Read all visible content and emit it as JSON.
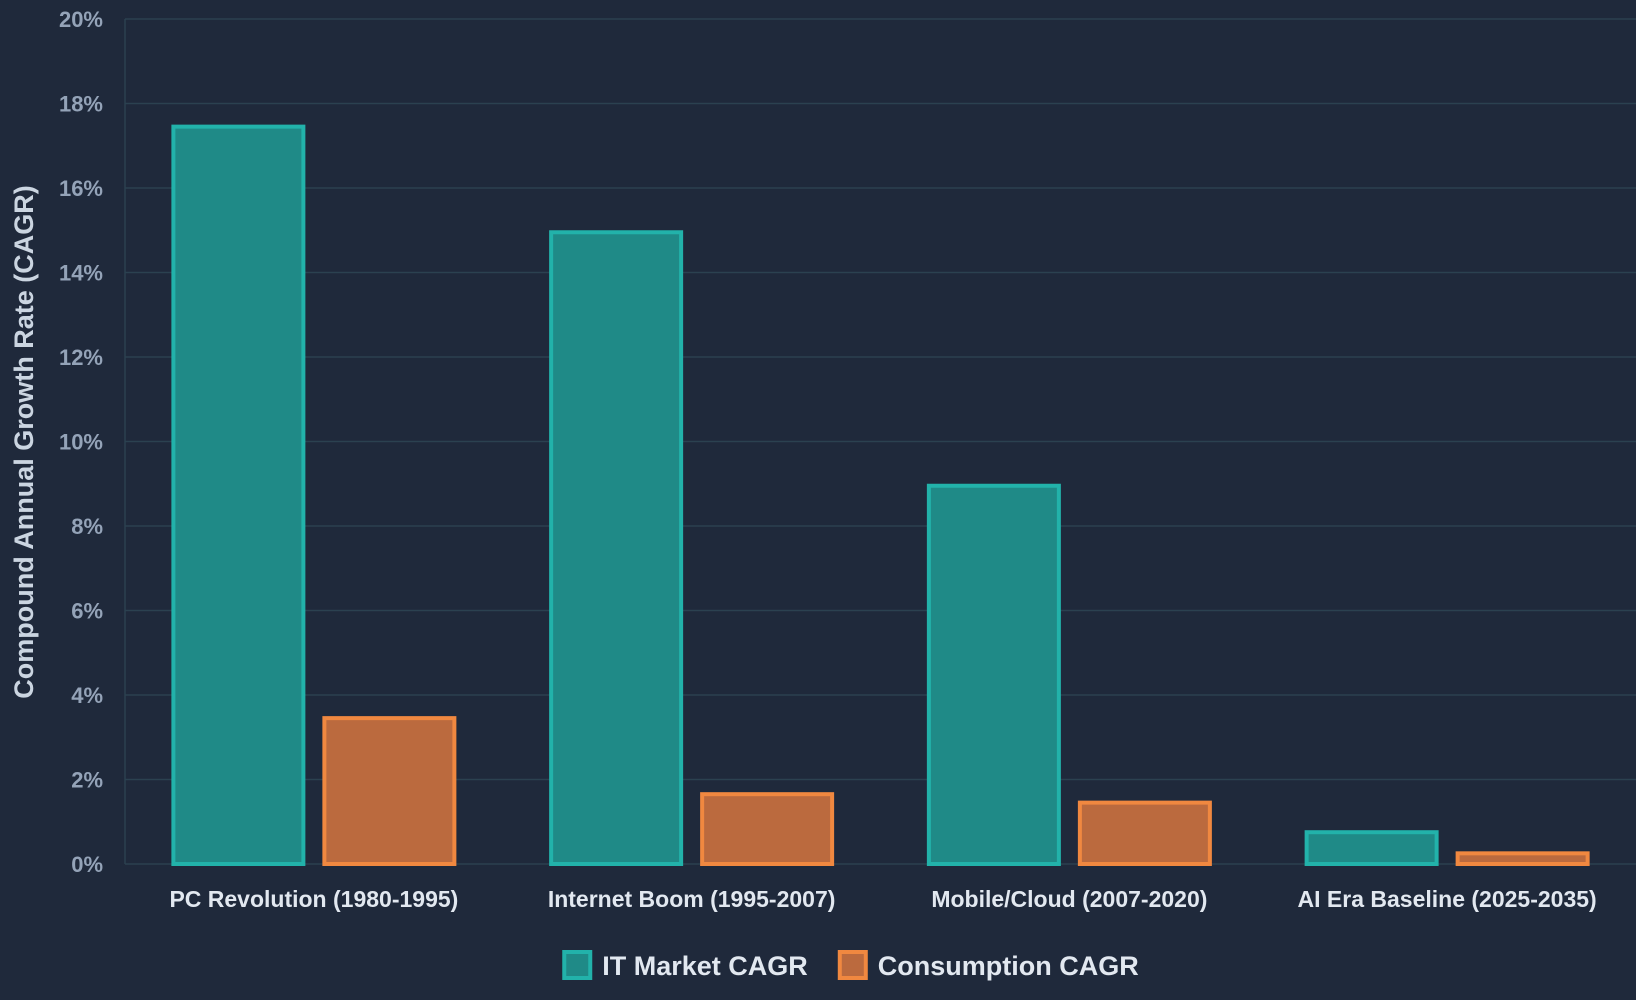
{
  "chart_data": {
    "type": "bar",
    "title": "",
    "xlabel": "",
    "ylabel": "Compound Annual Growth Rate (CAGR)",
    "ylim": [
      0,
      20
    ],
    "y_ticks": [
      {
        "value": 0,
        "label": "0%"
      },
      {
        "value": 2,
        "label": "2%"
      },
      {
        "value": 4,
        "label": "4%"
      },
      {
        "value": 6,
        "label": "6%"
      },
      {
        "value": 8,
        "label": "8%"
      },
      {
        "value": 10,
        "label": "10%"
      },
      {
        "value": 12,
        "label": "12%"
      },
      {
        "value": 14,
        "label": "14%"
      },
      {
        "value": 16,
        "label": "16%"
      },
      {
        "value": 18,
        "label": "18%"
      },
      {
        "value": 20,
        "label": "20%"
      }
    ],
    "grid": true,
    "legend_position": "bottom-center",
    "categories": [
      "PC Revolution (1980-1995)",
      "Internet Boom (1995-2007)",
      "Mobile/Cloud (2007-2020)",
      "AI Era Baseline (2025-2035)"
    ],
    "series": [
      {
        "name": "IT Market CAGR",
        "values": [
          17.5,
          15.0,
          9.0,
          0.8
        ],
        "fill": "#1f8a87",
        "stroke": "#22b2aa"
      },
      {
        "name": "Consumption CAGR",
        "values": [
          3.5,
          1.7,
          1.5,
          0.3
        ],
        "fill": "#bb6a3e",
        "stroke": "#f08840"
      }
    ]
  },
  "colors": {
    "background": "#1f293b",
    "grid": "#2b4150",
    "tick_text": "#94a3b8",
    "label_text": "#e2e8f0"
  }
}
